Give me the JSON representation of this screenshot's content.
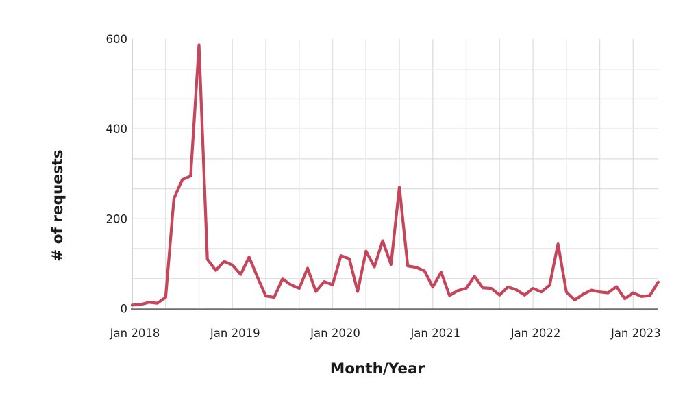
{
  "figure": {
    "background_color": "#ffffff"
  },
  "chart_data": {
    "type": "line",
    "title": "",
    "xlabel": "Month/Year",
    "ylabel": "# of requests",
    "ylim": [
      0,
      600
    ],
    "y_tick_values": [
      0,
      200,
      400,
      600
    ],
    "y_tick_labels": [
      "0",
      "200",
      "400",
      "600"
    ],
    "x_tick_month_indices": [
      0,
      12,
      24,
      36,
      48,
      60
    ],
    "x_tick_labels": [
      "Jan 2018",
      "Jan 2019",
      "Jan 2020",
      "Jan 2021",
      "Jan 2022",
      "Jan 2023"
    ],
    "grid": true,
    "gridline_month_step": 4,
    "horizontal_gridline_step": 66.667,
    "legend": "none",
    "line_color": "#c5455a",
    "gridline_color": "#dedede",
    "left_axis_color": "#c9c9c9",
    "bottom_axis_color": "#6f6f6f",
    "x": [
      "2018-01",
      "2018-02",
      "2018-03",
      "2018-04",
      "2018-05",
      "2018-06",
      "2018-07",
      "2018-08",
      "2018-09",
      "2018-10",
      "2018-11",
      "2018-12",
      "2019-01",
      "2019-02",
      "2019-03",
      "2019-04",
      "2019-05",
      "2019-06",
      "2019-07",
      "2019-08",
      "2019-09",
      "2019-10",
      "2019-11",
      "2019-12",
      "2020-01",
      "2020-02",
      "2020-03",
      "2020-04",
      "2020-05",
      "2020-06",
      "2020-07",
      "2020-08",
      "2020-09",
      "2020-10",
      "2020-11",
      "2020-12",
      "2021-01",
      "2021-02",
      "2021-03",
      "2021-04",
      "2021-05",
      "2021-06",
      "2021-07",
      "2021-08",
      "2021-09",
      "2021-10",
      "2021-11",
      "2021-12",
      "2022-01",
      "2022-02",
      "2022-03",
      "2022-04",
      "2022-05",
      "2022-06",
      "2022-07",
      "2022-08",
      "2022-09",
      "2022-10",
      "2022-11",
      "2022-12",
      "2023-01",
      "2023-02",
      "2023-03",
      "2023-04"
    ],
    "values": [
      8,
      9,
      14,
      12,
      25,
      245,
      287,
      295,
      587,
      110,
      85,
      105,
      97,
      76,
      115,
      70,
      28,
      25,
      66,
      53,
      45,
      90,
      38,
      60,
      53,
      118,
      111,
      38,
      128,
      93,
      151,
      98,
      270,
      95,
      92,
      84,
      48,
      81,
      29,
      40,
      45,
      72,
      46,
      45,
      30,
      48,
      42,
      30,
      45,
      37,
      52,
      144,
      37,
      19,
      32,
      41,
      37,
      35,
      49,
      22,
      35,
      27,
      29,
      59
    ]
  }
}
